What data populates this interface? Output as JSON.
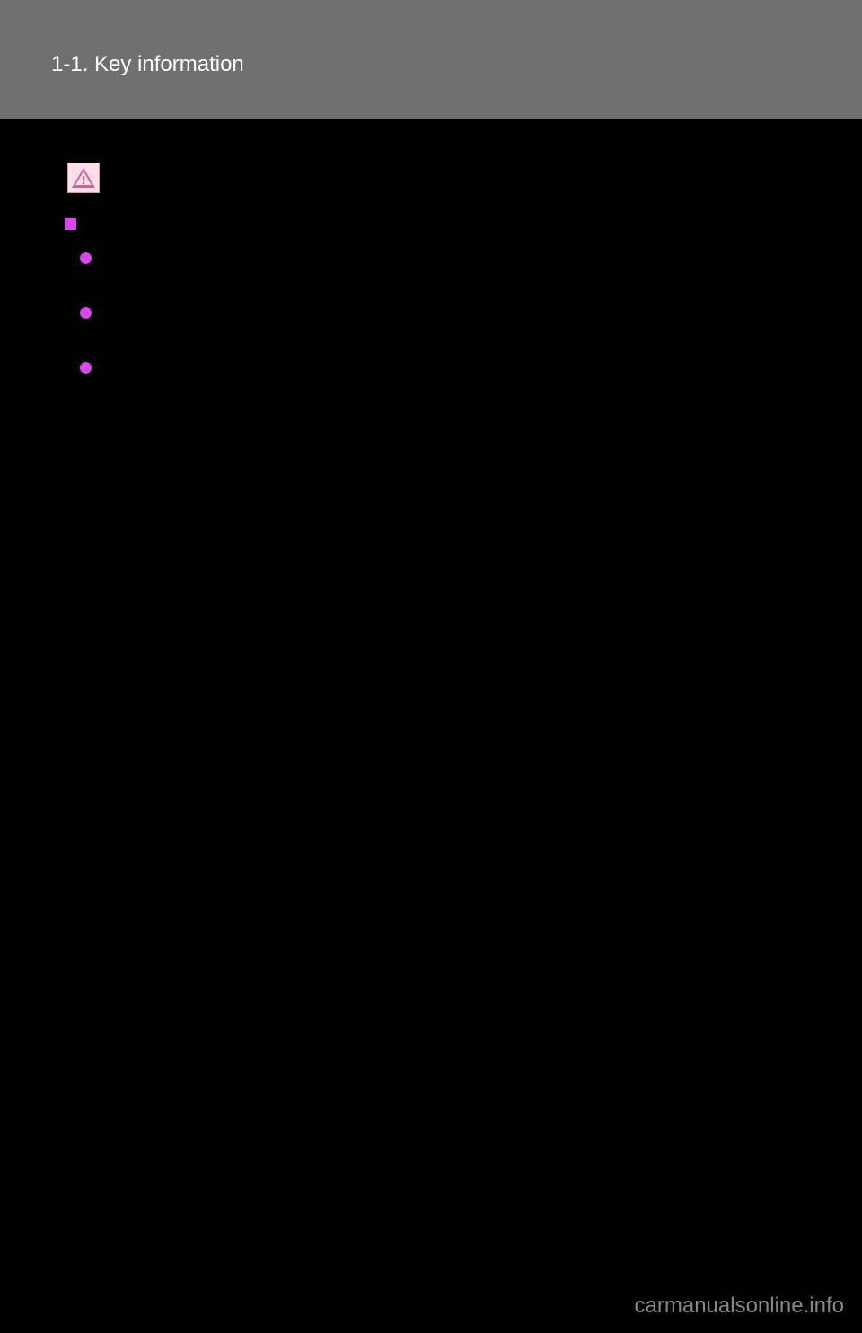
{
  "header": {
    "section_title": "1-1. Key information",
    "background_color": "#707070",
    "text_color": "#ffffff"
  },
  "caution_icon": {
    "bg_color": "#ffdde9",
    "border_color": "#cc99bb",
    "triangle_color": "#cc6699"
  },
  "bullets": {
    "square_color": "#d946ef",
    "circle_color": "#d946ef"
  },
  "footer": {
    "watermark": "carmanualsonline.info",
    "text_color": "#888888"
  },
  "page_background": "#000000"
}
